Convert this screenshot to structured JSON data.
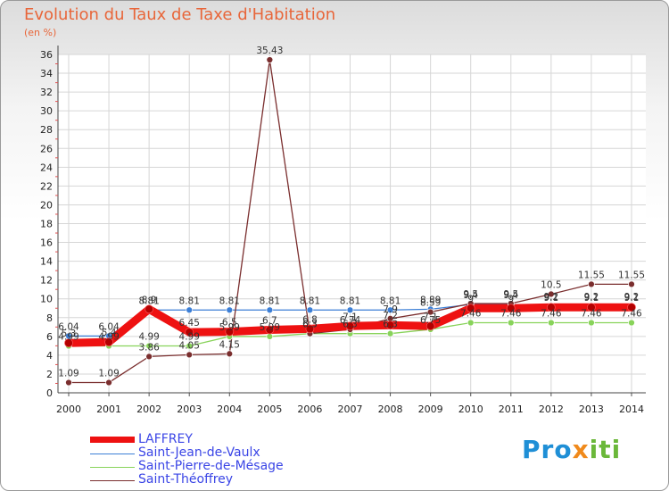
{
  "title": "Evolution du Taux de Taxe d'Habitation",
  "subtitle": "(en %)",
  "logo": {
    "part1": "Pro",
    "part2": "x",
    "part3": "iti"
  },
  "chart_data": {
    "type": "line",
    "title": "Evolution du Taux de Taxe d'Habitation",
    "ylabel": "(en %)",
    "xlabel": "",
    "ylim": [
      0,
      36
    ],
    "ytick_step": 2,
    "grid": true,
    "legend": "bottom-left",
    "categories": [
      "2000",
      "2001",
      "2002",
      "2003",
      "2004",
      "2005",
      "2006",
      "2007",
      "2008",
      "2009",
      "2010",
      "2011",
      "2012",
      "2013",
      "2014"
    ],
    "yticks": [
      "0",
      "2",
      "4",
      "6",
      "8",
      "10",
      "12",
      "14",
      "16",
      "18",
      "20",
      "22",
      "24",
      "26",
      "28",
      "30",
      "32",
      "34",
      "36"
    ],
    "series": [
      {
        "name": "LAFFREY",
        "color": "#ee1111",
        "values": [
          5.3,
          5.4,
          8.9,
          6.45,
          6.5,
          6.7,
          6.8,
          7.1,
          7.2,
          7.1,
          9.0,
          9.0,
          9.1,
          9.1,
          9.1
        ],
        "labels": [
          "5.3",
          "5.4",
          "8.9",
          "6.45",
          "6.5",
          "6.7",
          "6.8",
          "7.1",
          "7.2",
          "7.1",
          "9",
          "9",
          "9.1",
          "9.1",
          "9.1"
        ]
      },
      {
        "name": "Saint-Jean-de-Vaulx",
        "color": "#3c7fd6",
        "values": [
          6.04,
          6.04,
          8.81,
          8.81,
          8.81,
          8.81,
          8.81,
          8.81,
          8.81,
          8.89,
          9.4,
          9.4,
          9.2,
          9.2,
          9.2
        ],
        "labels": [
          "6.04",
          "6.04",
          "8.81",
          "8.81",
          "8.81",
          "8.81",
          "8.81",
          "8.81",
          "8.81",
          "8.89",
          "9.4",
          "9.4",
          "9.2",
          "9.2",
          "9.2"
        ]
      },
      {
        "name": "Saint-Pierre-de-Mésage",
        "color": "#88d35a",
        "values": [
          4.99,
          4.99,
          4.99,
          4.99,
          5.99,
          5.99,
          6.3,
          6.3,
          6.3,
          6.75,
          7.46,
          7.46,
          7.46,
          7.46,
          7.46
        ],
        "labels": [
          "4.99",
          "4.99",
          "4.99",
          "4.99",
          "5.99",
          "5.99",
          "6.3",
          "6.3",
          "6.3",
          "6.75",
          "7.46",
          "7.46",
          "7.46",
          "7.46",
          "7.46"
        ]
      },
      {
        "name": "Saint-Théoffrey",
        "color": "#7a2e2e",
        "values": [
          1.09,
          1.09,
          3.86,
          4.05,
          4.15,
          35.43,
          6.3,
          6.74,
          7.9,
          8.59,
          9.5,
          9.5,
          10.5,
          11.55,
          11.55
        ],
        "labels": [
          "1.09",
          "1.09",
          "3.86",
          "4.05",
          "4.15",
          "35.43",
          "6.3",
          "6.74",
          "7.9",
          "8.59",
          "9.5",
          "9.5",
          "10.5",
          "11.55",
          "11.55"
        ]
      }
    ]
  }
}
